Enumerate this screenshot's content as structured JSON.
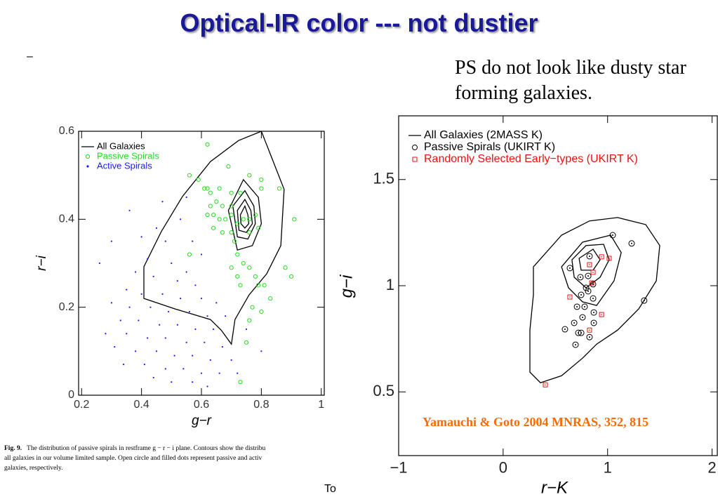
{
  "slide": {
    "title": "Optical-IR color --- not dustier",
    "dash": "–",
    "statement": "PS do not look like dusty star forming galaxies.",
    "caption_label": "Fig. 9.",
    "caption_lines": [
      "The distribution of passive spirals in restframe g − r − i plane.  Contours show the distribu",
      "all galaxies in our volume limited sample.  Open circle and filled dots represent passive and activ",
      "galaxies, respectively."
    ],
    "footer": "To"
  },
  "chart_data": [
    {
      "type": "scatter",
      "xlabel": "g−r",
      "ylabel": "r−i",
      "xlim": [
        0.19,
        1.01
      ],
      "ylim": [
        0,
        0.6
      ],
      "xticks": [
        0.2,
        0.4,
        0.6,
        0.8,
        1
      ],
      "yticks": [
        0,
        0.2,
        0.4,
        0.6
      ],
      "legend": "upper left",
      "series": [
        {
          "name": "All Galaxies",
          "marker": "line",
          "color": "#000000",
          "x": [
            0.8,
            0.876,
            0.865,
            0.818,
            0.759,
            0.712,
            0.7,
            0.666,
            0.63,
            0.513,
            0.408,
            0.408,
            0.466,
            0.537,
            0.63,
            0.724,
            null,
            0.74,
            0.79,
            0.8,
            0.77,
            0.72,
            0.69,
            null,
            0.745,
            0.775,
            0.78,
            0.755,
            0.72,
            0.705,
            null,
            0.745,
            0.765,
            0.77,
            0.75,
            0.725,
            0.72,
            null,
            0.745,
            0.755,
            0.758,
            0.745,
            0.732,
            0.73
          ],
          "y": [
            0.6,
            0.468,
            0.34,
            0.276,
            0.228,
            0.172,
            0.116,
            0.148,
            0.172,
            0.196,
            0.22,
            0.292,
            0.372,
            0.452,
            0.531,
            0.579,
            null,
            0.49,
            0.45,
            0.39,
            0.34,
            0.33,
            0.42,
            null,
            0.465,
            0.43,
            0.39,
            0.355,
            0.36,
            0.43,
            null,
            0.445,
            0.42,
            0.39,
            0.37,
            0.375,
            0.42,
            null,
            0.43,
            0.41,
            0.39,
            0.38,
            0.39,
            0.41
          ]
        },
        {
          "name": "Passive Spirals",
          "marker": "open-circle",
          "color": "#22dd22",
          "x": [
            0.59,
            0.56,
            0.61,
            0.62,
            0.63,
            0.66,
            0.69,
            0.7,
            0.73,
            0.63,
            0.65,
            0.67,
            0.7,
            0.62,
            0.64,
            0.66,
            0.68,
            0.7,
            0.72,
            0.74,
            0.76,
            0.78,
            0.76,
            0.79,
            0.64,
            0.67,
            0.7,
            0.71,
            0.8,
            0.86,
            0.91,
            0.76,
            0.8,
            0.72,
            0.74,
            0.76,
            0.7,
            0.78,
            0.72,
            0.88,
            0.9,
            0.73,
            0.79,
            0.81,
            0.83,
            0.77,
            0.8,
            0.76,
            0.75,
            0.73,
            0.56,
            0.62
          ],
          "y": [
            0.49,
            0.5,
            0.47,
            0.47,
            0.46,
            0.47,
            0.52,
            0.46,
            0.46,
            0.43,
            0.44,
            0.43,
            0.43,
            0.41,
            0.41,
            0.4,
            0.4,
            0.41,
            0.39,
            0.4,
            0.4,
            0.41,
            0.37,
            0.38,
            0.38,
            0.37,
            0.37,
            0.35,
            0.47,
            0.47,
            0.4,
            0.5,
            0.49,
            0.32,
            0.3,
            0.29,
            0.29,
            0.27,
            0.27,
            0.29,
            0.27,
            0.25,
            0.25,
            0.25,
            0.22,
            0.2,
            0.19,
            0.17,
            0.12,
            0.03,
            0.32,
            0.57
          ]
        },
        {
          "name": "Active Spirals",
          "marker": "dot",
          "color": "#1a1aff",
          "x": [
            0.45,
            0.48,
            0.42,
            0.5,
            0.55,
            0.38,
            0.44,
            0.52,
            0.58,
            0.35,
            0.4,
            0.47,
            0.53,
            0.6,
            0.65,
            0.3,
            0.36,
            0.43,
            0.49,
            0.56,
            0.62,
            0.68,
            0.33,
            0.39,
            0.46,
            0.52,
            0.58,
            0.64,
            0.28,
            0.35,
            0.42,
            0.48,
            0.55,
            0.61,
            0.67,
            0.31,
            0.38,
            0.45,
            0.51,
            0.57,
            0.63,
            0.7,
            0.34,
            0.41,
            0.48,
            0.54,
            0.6,
            0.66,
            0.44,
            0.5,
            0.57,
            0.62,
            0.53,
            0.57,
            0.6,
            0.47,
            0.4,
            0.75,
            0.8,
            0.26,
            0.3,
            0.72,
            0.36,
            0.55
          ],
          "y": [
            0.38,
            0.35,
            0.31,
            0.3,
            0.28,
            0.28,
            0.27,
            0.26,
            0.25,
            0.24,
            0.23,
            0.23,
            0.22,
            0.22,
            0.21,
            0.21,
            0.2,
            0.2,
            0.19,
            0.19,
            0.18,
            0.18,
            0.17,
            0.17,
            0.16,
            0.16,
            0.15,
            0.15,
            0.14,
            0.14,
            0.13,
            0.13,
            0.12,
            0.12,
            0.11,
            0.11,
            0.1,
            0.1,
            0.09,
            0.09,
            0.08,
            0.08,
            0.07,
            0.07,
            0.06,
            0.06,
            0.05,
            0.05,
            0.04,
            0.03,
            0.03,
            0.02,
            0.4,
            0.35,
            0.32,
            0.44,
            0.36,
            0.15,
            0.1,
            0.3,
            0.35,
            0.05,
            0.42,
            0.45
          ]
        }
      ]
    },
    {
      "type": "scatter",
      "xlabel": "r−K",
      "ylabel": "g−i",
      "xlim": [
        -1,
        2.05
      ],
      "ylim": [
        0.2,
        1.8
      ],
      "xticks": [
        {
          "value": -1,
          "label": "−1"
        },
        0,
        1,
        2
      ],
      "yticks": [
        0.5,
        1,
        1.5
      ],
      "legend": "upper left",
      "annotation": "Yamauchi & Goto 2004 MNRAS, 352, 815",
      "series": [
        {
          "name": "All Galaxies (2MASS K)",
          "marker": "line",
          "color": "#000000",
          "x": [
            0.29,
            0.559,
            0.827,
            1.096,
            1.365,
            1.499,
            1.466,
            1.298,
            1.096,
            0.895,
            0.76,
            0.559,
            0.357,
            0.256,
            0.256,
            0.29,
            null,
            0.559,
            0.76,
            1.029,
            1.13,
            1.062,
            0.895,
            0.76,
            0.626,
            null,
            0.659,
            0.794,
            0.962,
            1.015,
            0.928,
            0.794,
            0.68,
            null,
            0.727,
            0.861,
            0.928,
            0.861,
            0.747
          ],
          "y": [
            1.089,
            1.238,
            1.305,
            1.321,
            1.288,
            1.189,
            1.023,
            0.891,
            0.791,
            0.725,
            0.659,
            0.576,
            0.543,
            0.593,
            0.791,
            0.957,
            null,
            1.089,
            1.205,
            1.238,
            1.156,
            1.023,
            0.907,
            0.924,
            0.99,
            null,
            1.122,
            1.189,
            1.195,
            1.122,
            1.04,
            0.99,
            1.04,
            null,
            1.129,
            1.172,
            1.122,
            1.073,
            1.073
          ]
        },
        {
          "name": "Passive Spirals (UKIRT K)",
          "marker": "circle-dot",
          "color": "#000000",
          "x": [
            1.049,
            1.23,
            1.35,
            0.639,
            0.74,
            0.814,
            0.861,
            0.794,
            0.747,
            0.861,
            0.707,
            0.78,
            0.868,
            0.76,
            0.868,
            0.68,
            0.592,
            0.72,
            0.747,
            0.827,
            0.693,
            0.827,
            0.814
          ],
          "y": [
            1.238,
            1.199,
            0.93,
            1.083,
            1.04,
            1.046,
            1.007,
            0.99,
            0.957,
            0.94,
            0.901,
            0.901,
            0.874,
            0.851,
            0.825,
            0.825,
            0.795,
            0.778,
            0.778,
            0.758,
            0.722,
            1.139,
            0.974
          ]
        },
        {
          "name": "Randomly Selected Early−types (UKIRT K)",
          "marker": "open-square",
          "color": "#ee1111",
          "x": [
            0.827,
            0.942,
            1.015,
            0.861,
            0.848,
            0.639,
            0.942,
            0.827,
            0.404
          ],
          "y": [
            1.099,
            1.136,
            1.129,
            1.063,
            1.013,
            0.947,
            0.864,
            0.791,
            0.533
          ]
        }
      ]
    }
  ]
}
